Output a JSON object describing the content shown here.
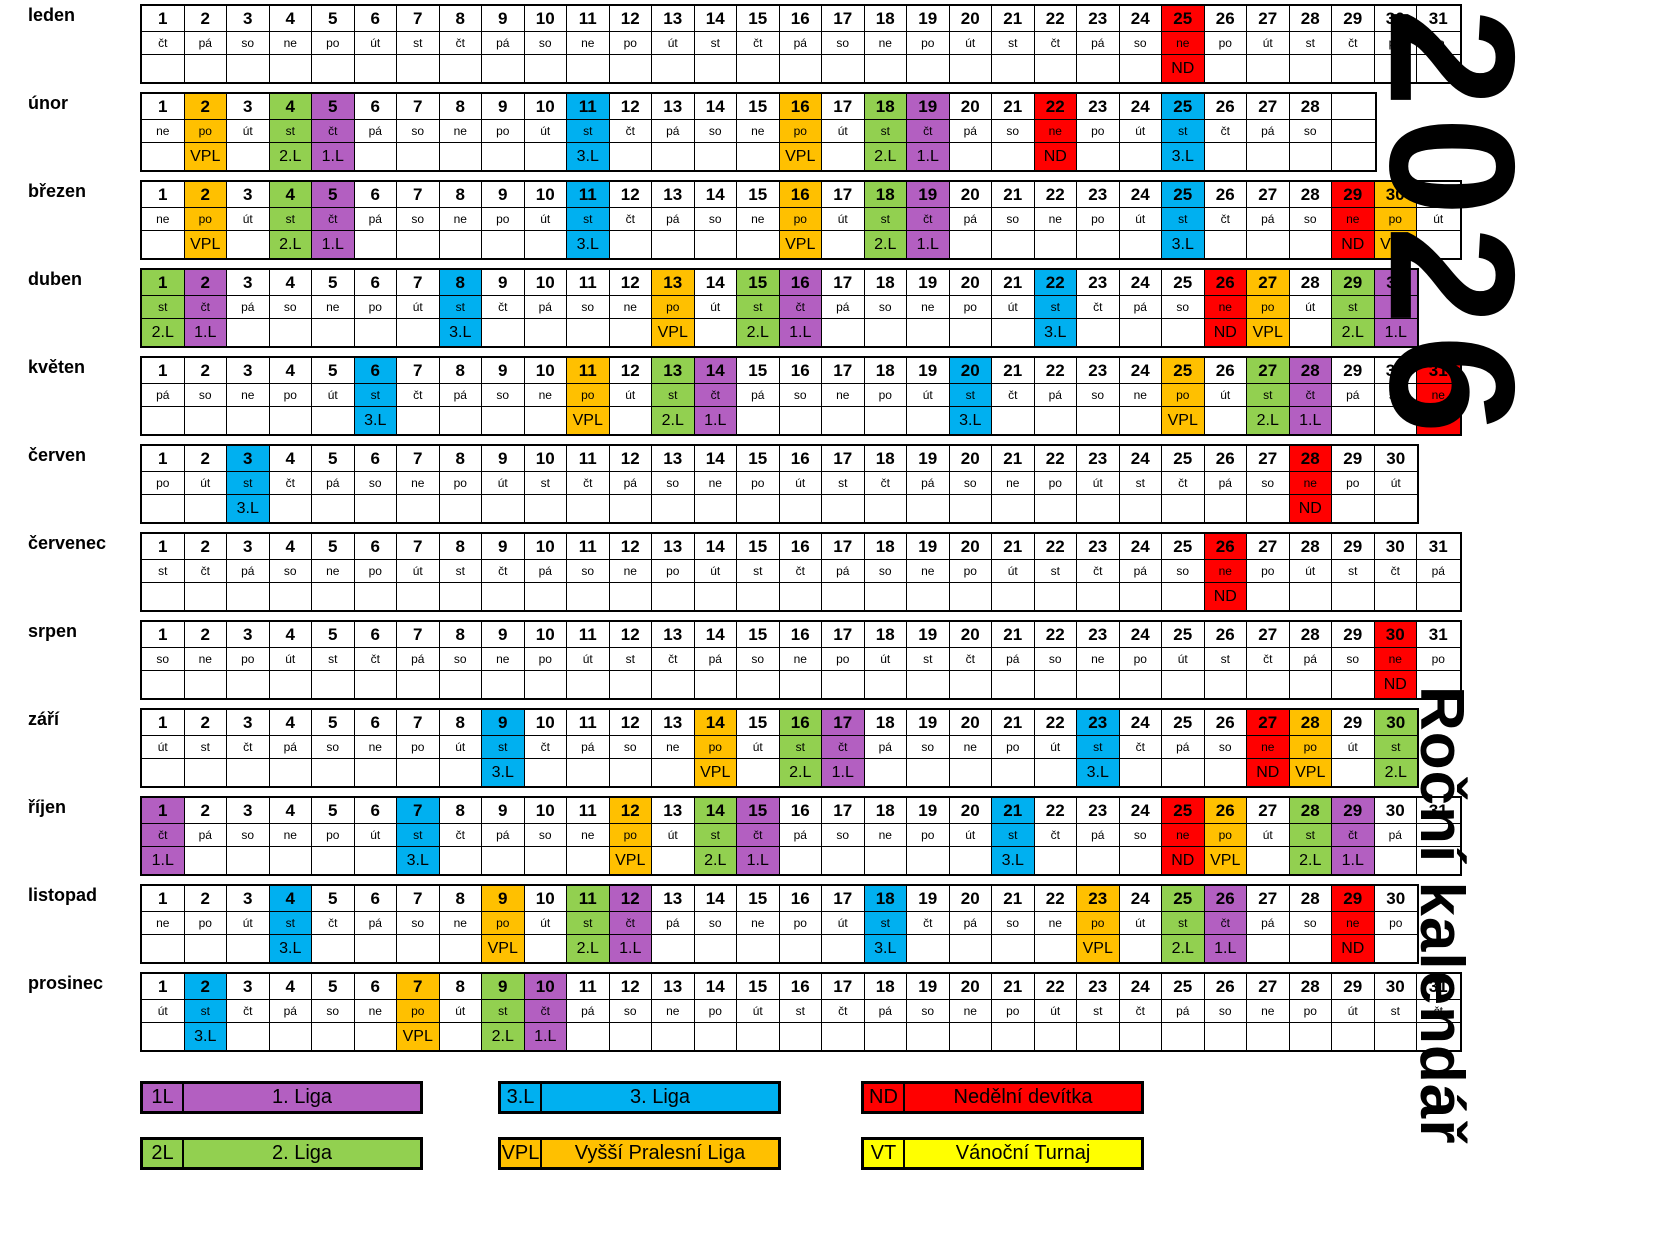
{
  "title": "2026",
  "subtitle": "Roční kalendář",
  "weekday_cycle": [
    "po",
    "út",
    "st",
    "čt",
    "pá",
    "so",
    "ne"
  ],
  "event_types": {
    "1.L": {
      "color": "#B35FC1"
    },
    "2.L": {
      "color": "#92D050"
    },
    "3.L": {
      "color": "#00B0F0"
    },
    "VPL": {
      "color": "#FFC000"
    },
    "ND": {
      "color": "#FF0000"
    },
    "VT": {
      "color": "#FFFF00"
    }
  },
  "months": [
    {
      "name": "leden",
      "days": 31,
      "first_weekday": "čt",
      "trailing_empty_columns": 0,
      "events": {
        "25": "ND"
      }
    },
    {
      "name": "únor",
      "days": 28,
      "first_weekday": "ne",
      "trailing_empty_columns": 1,
      "events": {
        "2": "VPL",
        "4": "2.L",
        "5": "1.L",
        "11": "3.L",
        "16": "VPL",
        "18": "2.L",
        "19": "1.L",
        "22": "ND",
        "25": "3.L"
      }
    },
    {
      "name": "březen",
      "days": 31,
      "first_weekday": "ne",
      "trailing_empty_columns": 0,
      "events": {
        "2": "VPL",
        "4": "2.L",
        "5": "1.L",
        "11": "3.L",
        "16": "VPL",
        "18": "2.L",
        "19": "1.L",
        "25": "3.L",
        "29": "ND",
        "30": "VPL"
      }
    },
    {
      "name": "duben",
      "days": 30,
      "first_weekday": "st",
      "trailing_empty_columns": 0,
      "events": {
        "1": "2.L",
        "2": "1.L",
        "8": "3.L",
        "13": "VPL",
        "15": "2.L",
        "16": "1.L",
        "22": "3.L",
        "26": "ND",
        "27": "VPL",
        "29": "2.L",
        "30": "1.L"
      }
    },
    {
      "name": "květen",
      "days": 31,
      "first_weekday": "pá",
      "trailing_empty_columns": 0,
      "events": {
        "6": "3.L",
        "11": "VPL",
        "13": "2.L",
        "14": "1.L",
        "20": "3.L",
        "25": "VPL",
        "27": "2.L",
        "28": "1.L",
        "31": "ND"
      }
    },
    {
      "name": "červen",
      "days": 30,
      "first_weekday": "po",
      "trailing_empty_columns": 0,
      "events": {
        "3": "3.L",
        "28": "ND"
      }
    },
    {
      "name": "červenec",
      "days": 31,
      "first_weekday": "st",
      "trailing_empty_columns": 0,
      "events": {
        "26": "ND"
      }
    },
    {
      "name": "srpen",
      "days": 31,
      "first_weekday": "so",
      "trailing_empty_columns": 0,
      "events": {
        "30": "ND"
      }
    },
    {
      "name": "září",
      "days": 30,
      "first_weekday": "út",
      "trailing_empty_columns": 0,
      "events": {
        "9": "3.L",
        "14": "VPL",
        "16": "2.L",
        "17": "1.L",
        "23": "3.L",
        "27": "ND",
        "28": "VPL",
        "30": "2.L"
      }
    },
    {
      "name": "říjen",
      "days": 31,
      "first_weekday": "čt",
      "trailing_empty_columns": 0,
      "events": {
        "1": "1.L",
        "7": "3.L",
        "12": "VPL",
        "14": "2.L",
        "15": "1.L",
        "21": "3.L",
        "25": "ND",
        "26": "VPL",
        "28": "2.L",
        "29": "1.L"
      }
    },
    {
      "name": "listopad",
      "days": 30,
      "first_weekday": "ne",
      "trailing_empty_columns": 0,
      "events": {
        "4": "3.L",
        "9": "VPL",
        "11": "2.L",
        "12": "1.L",
        "18": "3.L",
        "23": "VPL",
        "25": "2.L",
        "26": "1.L",
        "29": "ND"
      }
    },
    {
      "name": "prosinec",
      "days": 31,
      "first_weekday": "út",
      "trailing_empty_columns": 0,
      "events": {
        "2": "3.L",
        "7": "VPL",
        "9": "2.L",
        "10": "1.L"
      }
    }
  ],
  "legend": {
    "rows": [
      [
        {
          "code": "1L",
          "label": "1. Liga",
          "event": "1.L"
        },
        {
          "code": "3.L",
          "label": "3. Liga",
          "event": "3.L"
        },
        {
          "code": "ND",
          "label": "Nedělní devítka",
          "event": "ND"
        }
      ],
      [
        {
          "code": "2L",
          "label": "2. Liga",
          "event": "2.L"
        },
        {
          "code": "VPL",
          "label": "Vyšší Pralesní Liga",
          "event": "VPL"
        },
        {
          "code": "VT",
          "label": "Vánoční Turnaj",
          "event": "VT"
        }
      ]
    ]
  }
}
